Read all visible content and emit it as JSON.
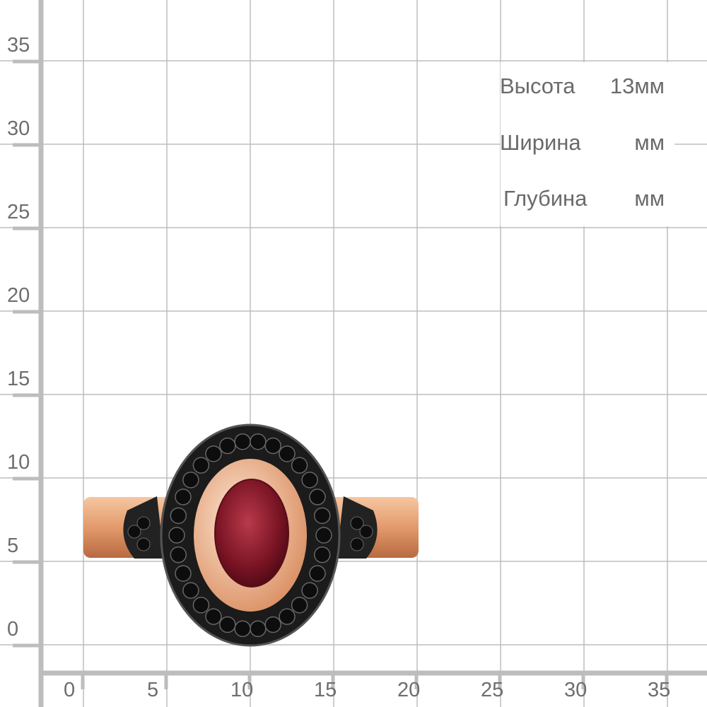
{
  "axes": {
    "y_ticks": [
      "0",
      "5",
      "10",
      "15",
      "20",
      "25",
      "30",
      "35"
    ],
    "x_ticks": [
      "0",
      "5",
      "10",
      "15",
      "20",
      "25",
      "30",
      "35"
    ],
    "unit": "mm"
  },
  "specs": [
    {
      "label": "Высота",
      "value": "13мм"
    },
    {
      "label": "Ширина",
      "value": "мм"
    },
    {
      "label": "Глубина",
      "value": "мм"
    }
  ],
  "colors": {
    "grid": "#bdbdbd",
    "gold": "#e8a27a",
    "black_metal": "#1c1c1c",
    "garnet": "#7a1424"
  },
  "product_image": "ring with oval garnet and black stone halo"
}
